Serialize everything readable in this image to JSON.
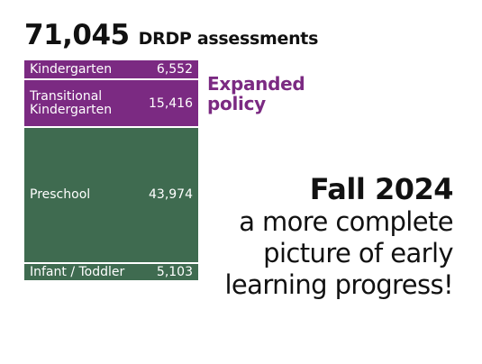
{
  "headline": {
    "total": "71,045",
    "unit": "DRDP assessments"
  },
  "chart_data": {
    "type": "bar",
    "stacked": true,
    "title": "71,045 DRDP assessments",
    "total": 71045,
    "categories": [
      "Kindergarten",
      "Transitional Kindergarten",
      "Preschool",
      "Infant / Toddler"
    ],
    "values": [
      6552,
      15416,
      43974,
      5103
    ],
    "value_labels": [
      "6,552",
      "15,416",
      "43,974",
      "5,103"
    ],
    "colors": [
      "#7b2a82",
      "#7b2a82",
      "#3f6b50",
      "#3f6b50"
    ],
    "annotation": "Expanded policy",
    "annotation_applies_to": [
      "Kindergarten",
      "Transitional Kindergarten"
    ],
    "colors_meaning": {
      "expanded_policy": "#7b2a82",
      "other": "#3f6b50"
    }
  },
  "message": {
    "title": "Fall 2024",
    "lines": [
      "a more complete",
      "picture of early",
      "learning progress!"
    ]
  }
}
